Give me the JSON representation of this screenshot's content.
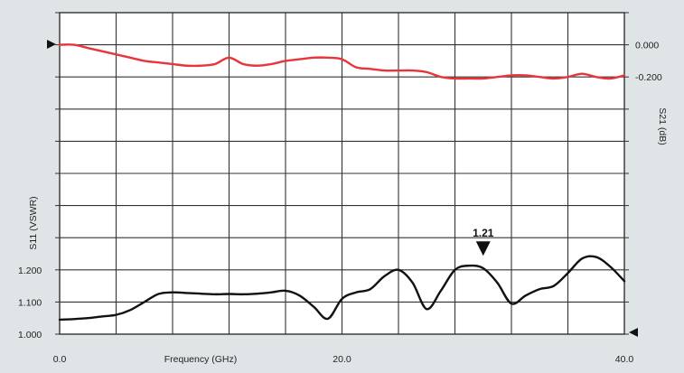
{
  "chart_data": {
    "type": "line",
    "x_ticks": [
      "0.0",
      "20.0",
      "40.0"
    ],
    "x_tick_values": [
      0,
      20,
      40
    ],
    "xlabel": "Frequency (GHz)",
    "xlim": [
      0,
      40
    ],
    "ylabel_left": "S11 (VSWR)",
    "ylabel_right": "S21 (dB)",
    "left_ticks": [
      "1.000",
      "1.100",
      "1.200"
    ],
    "left_tick_values": [
      1.0,
      1.1,
      1.2
    ],
    "left_ylim": [
      1.0,
      2.0
    ],
    "right_ticks": [
      "0.000",
      "-0.200"
    ],
    "right_tick_values": [
      0.0,
      -0.2
    ],
    "right_ylim": [
      -1.8,
      0.2
    ],
    "grid": true,
    "marker": {
      "x": 30,
      "y": 1.21,
      "label": "1.21"
    },
    "series": [
      {
        "color": "#e8353a",
        "axis": "right",
        "x": [
          0,
          1,
          2,
          3,
          4,
          5,
          6,
          7,
          8,
          9,
          10,
          11,
          12,
          13,
          14,
          15,
          16,
          17,
          18,
          19,
          20,
          21,
          22,
          23,
          24,
          25,
          26,
          27,
          28,
          29,
          30,
          31,
          32,
          33,
          34,
          35,
          36,
          37,
          38,
          39,
          40
        ],
        "values": [
          0.0,
          0.0,
          -0.02,
          -0.04,
          -0.06,
          -0.08,
          -0.1,
          -0.11,
          -0.12,
          -0.13,
          -0.13,
          -0.12,
          -0.08,
          -0.12,
          -0.13,
          -0.12,
          -0.1,
          -0.09,
          -0.08,
          -0.08,
          -0.09,
          -0.14,
          -0.15,
          -0.16,
          -0.16,
          -0.16,
          -0.17,
          -0.2,
          -0.21,
          -0.21,
          -0.21,
          -0.2,
          -0.19,
          -0.19,
          -0.2,
          -0.21,
          -0.2,
          -0.18,
          -0.2,
          -0.21,
          -0.19
        ]
      },
      {
        "color": "#111111",
        "axis": "left",
        "x": [
          0,
          1,
          2,
          3,
          4,
          5,
          6,
          7,
          8,
          9,
          10,
          11,
          12,
          13,
          14,
          15,
          16,
          17,
          18,
          19,
          20,
          21,
          22,
          23,
          24,
          25,
          26,
          27,
          28,
          29,
          30,
          31,
          32,
          33,
          34,
          35,
          36,
          37,
          38,
          39,
          40
        ],
        "values": [
          1.045,
          1.047,
          1.05,
          1.055,
          1.06,
          1.075,
          1.1,
          1.125,
          1.13,
          1.128,
          1.126,
          1.124,
          1.125,
          1.124,
          1.126,
          1.13,
          1.135,
          1.12,
          1.085,
          1.048,
          1.11,
          1.13,
          1.14,
          1.18,
          1.2,
          1.16,
          1.078,
          1.135,
          1.2,
          1.213,
          1.205,
          1.16,
          1.095,
          1.12,
          1.14,
          1.15,
          1.19,
          1.235,
          1.24,
          1.21,
          1.165
        ]
      }
    ]
  }
}
